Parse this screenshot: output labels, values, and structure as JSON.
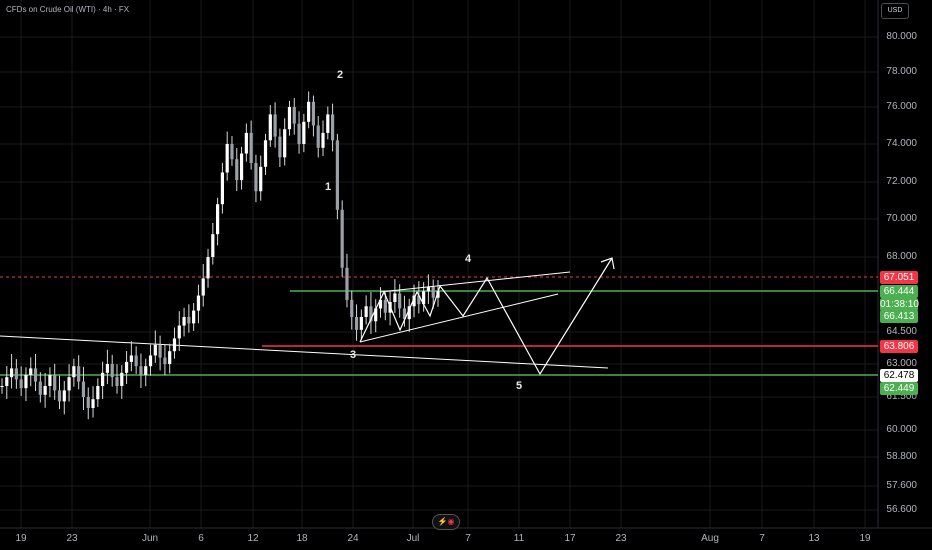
{
  "header": {
    "title": "CFDs on Crude Oil (WTI) · 4h · FX",
    "currency": "USD"
  },
  "colors": {
    "up": "#e6e6e6",
    "down": "#e6e6e6",
    "green": "#4caf50",
    "red": "#f23645",
    "grid": "#1a1a1a",
    "axis": "#b2b5be",
    "drawing": "#ffffff"
  },
  "chart_data": {
    "type": "candlestick",
    "title": "CFDs on Crude Oil (WTI) · 4h · FX",
    "y_ticks": [
      "80.000",
      "78.000",
      "76.000",
      "74.000",
      "72.000",
      "70.000",
      "68.000",
      "64.500",
      "63.000",
      "61.500",
      "60.000",
      "58.800",
      "57.600",
      "56.600"
    ],
    "x_ticks": [
      "19",
      "23",
      "Jun",
      "6",
      "12",
      "18",
      "24",
      "Jul",
      "7",
      "11",
      "17",
      "23",
      "Aug",
      "7",
      "13",
      "19"
    ],
    "price_labels": [
      {
        "name": "red-top",
        "text": "67.051",
        "color": "#f23645"
      },
      {
        "name": "green-top",
        "text": "66.444",
        "color": "#4caf50"
      },
      {
        "name": "countdown",
        "text": "01:38:10",
        "color": "#4caf50"
      },
      {
        "name": "current",
        "text": "66.413",
        "color": "#4caf50"
      },
      {
        "name": "red-level",
        "text": "63.806",
        "color": "#f23645"
      },
      {
        "name": "white-level",
        "text": "62.478",
        "color": "#ffffff"
      },
      {
        "name": "green-level",
        "text": "62.449",
        "color": "#4caf50"
      }
    ],
    "wave_labels": [
      "1",
      "2",
      "3",
      "4",
      "5"
    ],
    "close_path": [
      62.0,
      62.4,
      62.8,
      62.3,
      61.9,
      62.5,
      62.8,
      62.2,
      61.6,
      62.0,
      62.5,
      61.8,
      61.3,
      61.8,
      62.4,
      62.9,
      62.2,
      61.5,
      61.0,
      61.4,
      62.0,
      62.6,
      63.0,
      62.4,
      62.0,
      62.6,
      63.1,
      63.4,
      62.9,
      62.5,
      62.9,
      63.4,
      63.9,
      63.3,
      63.0,
      63.6,
      64.2,
      64.8,
      65.2,
      64.9,
      65.5,
      66.2,
      67.0,
      68.0,
      69.2,
      70.8,
      72.5,
      74.0,
      73.2,
      72.1,
      73.5,
      74.6,
      73.0,
      71.5,
      72.8,
      74.2,
      75.6,
      74.4,
      73.3,
      74.8,
      76.0,
      75.1,
      74.0,
      75.2,
      76.3,
      75.0,
      73.8,
      74.6,
      75.6,
      74.2,
      70.5,
      67.5,
      66.0,
      65.2,
      64.6,
      65.2,
      65.7,
      65.0,
      65.6,
      66.0,
      65.4,
      65.9,
      66.3,
      65.6,
      65.1,
      65.7,
      66.2,
      65.8,
      66.4,
      66.6,
      66.1,
      66.413
    ]
  }
}
